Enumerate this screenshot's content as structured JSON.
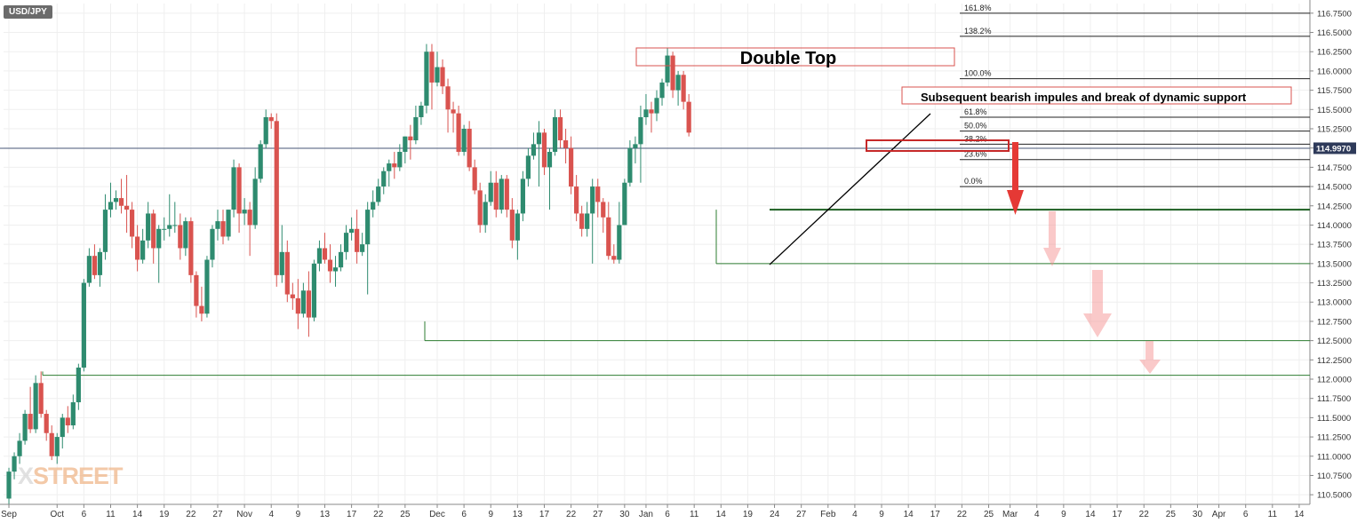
{
  "symbol": "USD/JPY",
  "watermark": {
    "prefix": "X",
    "rest": "STREET"
  },
  "chart_data": {
    "type": "candlestick",
    "title": "USD/JPY",
    "ylim": [
      110.375,
      116.875
    ],
    "xlim": [
      0,
      244
    ],
    "y_ticks": [
      110.5,
      110.75,
      111.0,
      111.25,
      111.5,
      111.75,
      112.0,
      112.25,
      112.5,
      112.75,
      113.0,
      113.25,
      113.5,
      113.75,
      114.0,
      114.25,
      114.5,
      114.75,
      115.0,
      115.25,
      115.5,
      115.75,
      116.0,
      116.25,
      116.5,
      116.75
    ],
    "y_tick_labels": [
      "110.5000",
      "110.7500",
      "111.0000",
      "111.2500",
      "111.5000",
      "111.7500",
      "112.0000",
      "112.2500",
      "112.5000",
      "112.7500",
      "113.0000",
      "113.2500",
      "113.5000",
      "113.7500",
      "114.0000",
      "114.2500",
      "114.5000",
      "114.7500",
      "115.0000",
      "115.2500",
      "115.5000",
      "115.7500",
      "116.0000",
      "116.2500",
      "116.5000",
      "116.7500"
    ],
    "x_ticks": [
      {
        "d": 1,
        "label": "Sep"
      },
      {
        "d": 10,
        "label": "Oct"
      },
      {
        "d": 15,
        "label": "6"
      },
      {
        "d": 20,
        "label": "11"
      },
      {
        "d": 25,
        "label": "14"
      },
      {
        "d": 30,
        "label": "19"
      },
      {
        "d": 35,
        "label": "22"
      },
      {
        "d": 40,
        "label": "27"
      },
      {
        "d": 45,
        "label": "Nov"
      },
      {
        "d": 50,
        "label": "4"
      },
      {
        "d": 55,
        "label": "9"
      },
      {
        "d": 60,
        "label": "13"
      },
      {
        "d": 65,
        "label": "17"
      },
      {
        "d": 70,
        "label": "22"
      },
      {
        "d": 75,
        "label": "25"
      },
      {
        "d": 81,
        "label": "Dec"
      },
      {
        "d": 86,
        "label": "6"
      },
      {
        "d": 91,
        "label": "9"
      },
      {
        "d": 96,
        "label": "13"
      },
      {
        "d": 101,
        "label": "17"
      },
      {
        "d": 106,
        "label": "22"
      },
      {
        "d": 111,
        "label": "27"
      },
      {
        "d": 116,
        "label": "30"
      },
      {
        "d": 120,
        "label": "Jan"
      },
      {
        "d": 124,
        "label": "6"
      },
      {
        "d": 129,
        "label": "11"
      },
      {
        "d": 134,
        "label": "14"
      },
      {
        "d": 139,
        "label": "19"
      },
      {
        "d": 144,
        "label": "24"
      },
      {
        "d": 149,
        "label": "27"
      },
      {
        "d": 154,
        "label": "Feb"
      },
      {
        "d": 159,
        "label": "4"
      },
      {
        "d": 164,
        "label": "9"
      },
      {
        "d": 169,
        "label": "14"
      },
      {
        "d": 174,
        "label": "17"
      },
      {
        "d": 179,
        "label": "22"
      },
      {
        "d": 184,
        "label": "25"
      },
      {
        "d": 188,
        "label": "Mar"
      },
      {
        "d": 193,
        "label": "4"
      },
      {
        "d": 198,
        "label": "9"
      },
      {
        "d": 203,
        "label": "14"
      },
      {
        "d": 208,
        "label": "17"
      },
      {
        "d": 213,
        "label": "22"
      },
      {
        "d": 218,
        "label": "25"
      },
      {
        "d": 223,
        "label": "30"
      },
      {
        "d": 227,
        "label": "Apr"
      },
      {
        "d": 232,
        "label": "6"
      },
      {
        "d": 237,
        "label": "11"
      },
      {
        "d": 242,
        "label": "14"
      }
    ],
    "candles": [
      {
        "d": 1,
        "o": 110.45,
        "h": 110.85,
        "l": 110.38,
        "c": 110.8
      },
      {
        "d": 2,
        "o": 110.8,
        "h": 111.05,
        "l": 110.7,
        "c": 111.0
      },
      {
        "d": 3,
        "o": 111.0,
        "h": 111.3,
        "l": 110.9,
        "c": 111.2
      },
      {
        "d": 4,
        "o": 111.2,
        "h": 111.6,
        "l": 111.15,
        "c": 111.55
      },
      {
        "d": 5,
        "o": 111.55,
        "h": 111.9,
        "l": 111.3,
        "c": 111.35
      },
      {
        "d": 6,
        "o": 111.35,
        "h": 112.05,
        "l": 111.3,
        "c": 111.95
      },
      {
        "d": 7,
        "o": 111.95,
        "h": 112.1,
        "l": 111.5,
        "c": 111.55
      },
      {
        "d": 8,
        "o": 111.55,
        "h": 111.6,
        "l": 111.2,
        "c": 111.3
      },
      {
        "d": 9,
        "o": 111.3,
        "h": 111.4,
        "l": 110.95,
        "c": 111.0
      },
      {
        "d": 10,
        "o": 111.0,
        "h": 111.3,
        "l": 110.9,
        "c": 111.25
      },
      {
        "d": 11,
        "o": 111.25,
        "h": 111.55,
        "l": 111.1,
        "c": 111.5
      },
      {
        "d": 12,
        "o": 111.5,
        "h": 111.65,
        "l": 111.3,
        "c": 111.4
      },
      {
        "d": 13,
        "o": 111.4,
        "h": 111.8,
        "l": 111.35,
        "c": 111.7
      },
      {
        "d": 14,
        "o": 111.7,
        "h": 112.2,
        "l": 111.6,
        "c": 112.15
      },
      {
        "d": 15,
        "o": 112.15,
        "h": 113.3,
        "l": 112.1,
        "c": 113.25
      },
      {
        "d": 16,
        "o": 113.25,
        "h": 113.7,
        "l": 113.2,
        "c": 113.6
      },
      {
        "d": 17,
        "o": 113.6,
        "h": 113.75,
        "l": 113.3,
        "c": 113.35
      },
      {
        "d": 18,
        "o": 113.35,
        "h": 113.7,
        "l": 113.2,
        "c": 113.65
      },
      {
        "d": 19,
        "o": 113.65,
        "h": 114.4,
        "l": 113.55,
        "c": 114.2
      },
      {
        "d": 20,
        "o": 114.2,
        "h": 114.55,
        "l": 114.1,
        "c": 114.3
      },
      {
        "d": 21,
        "o": 114.3,
        "h": 114.45,
        "l": 114.2,
        "c": 114.35
      },
      {
        "d": 22,
        "o": 114.35,
        "h": 114.6,
        "l": 114.15,
        "c": 114.25
      },
      {
        "d": 23,
        "o": 114.25,
        "h": 114.65,
        "l": 113.9,
        "c": 114.2
      },
      {
        "d": 24,
        "o": 114.2,
        "h": 114.3,
        "l": 113.7,
        "c": 113.85
      },
      {
        "d": 25,
        "o": 113.85,
        "h": 114.0,
        "l": 113.4,
        "c": 113.55
      },
      {
        "d": 26,
        "o": 113.55,
        "h": 113.95,
        "l": 113.5,
        "c": 113.8
      },
      {
        "d": 27,
        "o": 113.8,
        "h": 114.3,
        "l": 113.7,
        "c": 114.15
      },
      {
        "d": 28,
        "o": 114.15,
        "h": 114.2,
        "l": 113.5,
        "c": 113.7
      },
      {
        "d": 29,
        "o": 113.7,
        "h": 114.0,
        "l": 113.25,
        "c": 113.95
      },
      {
        "d": 30,
        "o": 113.95,
        "h": 114.1,
        "l": 113.8,
        "c": 113.95
      },
      {
        "d": 31,
        "o": 113.95,
        "h": 114.4,
        "l": 113.85,
        "c": 114.0
      },
      {
        "d": 32,
        "o": 114.0,
        "h": 114.3,
        "l": 113.9,
        "c": 114.0
      },
      {
        "d": 33,
        "o": 114.0,
        "h": 114.15,
        "l": 113.55,
        "c": 113.7
      },
      {
        "d": 34,
        "o": 113.7,
        "h": 114.1,
        "l": 113.6,
        "c": 114.05
      },
      {
        "d": 35,
        "o": 114.05,
        "h": 114.1,
        "l": 113.25,
        "c": 113.35
      },
      {
        "d": 36,
        "o": 113.35,
        "h": 113.4,
        "l": 112.8,
        "c": 112.95
      },
      {
        "d": 37,
        "o": 112.95,
        "h": 113.2,
        "l": 112.75,
        "c": 112.85
      },
      {
        "d": 38,
        "o": 112.85,
        "h": 113.6,
        "l": 112.8,
        "c": 113.55
      },
      {
        "d": 39,
        "o": 113.55,
        "h": 114.0,
        "l": 113.45,
        "c": 113.95
      },
      {
        "d": 40,
        "o": 113.95,
        "h": 114.2,
        "l": 113.8,
        "c": 114.05
      },
      {
        "d": 41,
        "o": 114.05,
        "h": 114.2,
        "l": 113.75,
        "c": 113.85
      },
      {
        "d": 42,
        "o": 113.85,
        "h": 114.2,
        "l": 113.8,
        "c": 114.2
      },
      {
        "d": 43,
        "o": 114.2,
        "h": 114.85,
        "l": 114.1,
        "c": 114.75
      },
      {
        "d": 44,
        "o": 114.75,
        "h": 114.8,
        "l": 113.9,
        "c": 114.15
      },
      {
        "d": 45,
        "o": 114.15,
        "h": 114.35,
        "l": 114.0,
        "c": 114.2
      },
      {
        "d": 46,
        "o": 114.2,
        "h": 114.3,
        "l": 113.6,
        "c": 114.0
      },
      {
        "d": 47,
        "o": 114.0,
        "h": 114.75,
        "l": 113.95,
        "c": 114.6
      },
      {
        "d": 48,
        "o": 114.6,
        "h": 115.1,
        "l": 114.55,
        "c": 115.05
      },
      {
        "d": 49,
        "o": 115.05,
        "h": 115.5,
        "l": 115.0,
        "c": 115.4
      },
      {
        "d": 50,
        "o": 115.4,
        "h": 115.45,
        "l": 115.25,
        "c": 115.35
      },
      {
        "d": 51,
        "o": 115.35,
        "h": 115.45,
        "l": 113.2,
        "c": 113.35
      },
      {
        "d": 52,
        "o": 113.35,
        "h": 114.0,
        "l": 113.25,
        "c": 113.65
      },
      {
        "d": 53,
        "o": 113.65,
        "h": 113.8,
        "l": 113.0,
        "c": 113.1
      },
      {
        "d": 54,
        "o": 113.1,
        "h": 113.25,
        "l": 112.9,
        "c": 113.05
      },
      {
        "d": 55,
        "o": 113.05,
        "h": 113.3,
        "l": 112.65,
        "c": 112.85
      },
      {
        "d": 56,
        "o": 112.85,
        "h": 113.25,
        "l": 112.8,
        "c": 113.15
      },
      {
        "d": 57,
        "o": 113.15,
        "h": 113.4,
        "l": 112.55,
        "c": 112.8
      },
      {
        "d": 58,
        "o": 112.8,
        "h": 113.55,
        "l": 112.75,
        "c": 113.5
      },
      {
        "d": 59,
        "o": 113.5,
        "h": 113.8,
        "l": 113.4,
        "c": 113.7
      },
      {
        "d": 60,
        "o": 113.7,
        "h": 113.9,
        "l": 113.5,
        "c": 113.55
      },
      {
        "d": 61,
        "o": 113.55,
        "h": 113.75,
        "l": 113.25,
        "c": 113.4
      },
      {
        "d": 62,
        "o": 113.4,
        "h": 113.6,
        "l": 113.2,
        "c": 113.45
      },
      {
        "d": 63,
        "o": 113.45,
        "h": 113.75,
        "l": 113.4,
        "c": 113.65
      },
      {
        "d": 64,
        "o": 113.65,
        "h": 114.0,
        "l": 113.55,
        "c": 113.9
      },
      {
        "d": 65,
        "o": 113.9,
        "h": 114.1,
        "l": 113.8,
        "c": 113.95
      },
      {
        "d": 66,
        "o": 113.95,
        "h": 114.2,
        "l": 113.5,
        "c": 113.65
      },
      {
        "d": 67,
        "o": 113.65,
        "h": 113.9,
        "l": 113.6,
        "c": 113.75
      },
      {
        "d": 68,
        "o": 113.75,
        "h": 114.3,
        "l": 113.1,
        "c": 114.2
      },
      {
        "d": 69,
        "o": 114.2,
        "h": 114.45,
        "l": 114.1,
        "c": 114.3
      },
      {
        "d": 70,
        "o": 114.3,
        "h": 114.6,
        "l": 114.25,
        "c": 114.5
      },
      {
        "d": 71,
        "o": 114.5,
        "h": 114.75,
        "l": 114.4,
        "c": 114.7
      },
      {
        "d": 72,
        "o": 114.7,
        "h": 114.85,
        "l": 114.5,
        "c": 114.8
      },
      {
        "d": 73,
        "o": 114.8,
        "h": 114.95,
        "l": 114.6,
        "c": 114.75
      },
      {
        "d": 74,
        "o": 114.75,
        "h": 115.05,
        "l": 114.7,
        "c": 114.95
      },
      {
        "d": 75,
        "o": 114.95,
        "h": 115.15,
        "l": 114.8,
        "c": 115.15
      },
      {
        "d": 76,
        "o": 115.15,
        "h": 115.3,
        "l": 114.85,
        "c": 115.1
      },
      {
        "d": 77,
        "o": 115.1,
        "h": 115.55,
        "l": 115.05,
        "c": 115.4
      },
      {
        "d": 78,
        "o": 115.4,
        "h": 115.6,
        "l": 115.3,
        "c": 115.55
      },
      {
        "d": 79,
        "o": 115.55,
        "h": 116.35,
        "l": 115.45,
        "c": 116.25
      },
      {
        "d": 80,
        "o": 116.25,
        "h": 116.35,
        "l": 115.5,
        "c": 115.85
      },
      {
        "d": 81,
        "o": 115.85,
        "h": 116.25,
        "l": 115.8,
        "c": 116.05
      },
      {
        "d": 82,
        "o": 116.05,
        "h": 116.15,
        "l": 115.7,
        "c": 115.8
      },
      {
        "d": 83,
        "o": 115.8,
        "h": 115.9,
        "l": 115.2,
        "c": 115.5
      },
      {
        "d": 84,
        "o": 115.5,
        "h": 115.6,
        "l": 115.2,
        "c": 115.45
      },
      {
        "d": 85,
        "o": 115.45,
        "h": 115.55,
        "l": 114.9,
        "c": 114.95
      },
      {
        "d": 86,
        "o": 114.95,
        "h": 115.3,
        "l": 114.9,
        "c": 115.25
      },
      {
        "d": 87,
        "o": 115.25,
        "h": 115.35,
        "l": 114.7,
        "c": 114.75
      },
      {
        "d": 88,
        "o": 114.75,
        "h": 114.85,
        "l": 114.4,
        "c": 114.45
      },
      {
        "d": 89,
        "o": 114.45,
        "h": 114.55,
        "l": 113.9,
        "c": 114.0
      },
      {
        "d": 90,
        "o": 114.0,
        "h": 114.4,
        "l": 113.9,
        "c": 114.3
      },
      {
        "d": 91,
        "o": 114.3,
        "h": 114.7,
        "l": 114.25,
        "c": 114.55
      },
      {
        "d": 92,
        "o": 114.55,
        "h": 114.7,
        "l": 114.1,
        "c": 114.2
      },
      {
        "d": 93,
        "o": 114.2,
        "h": 114.65,
        "l": 114.15,
        "c": 114.6
      },
      {
        "d": 94,
        "o": 114.6,
        "h": 114.65,
        "l": 114.1,
        "c": 114.2
      },
      {
        "d": 95,
        "o": 114.2,
        "h": 114.35,
        "l": 113.7,
        "c": 113.8
      },
      {
        "d": 96,
        "o": 113.8,
        "h": 114.2,
        "l": 113.55,
        "c": 114.15
      },
      {
        "d": 97,
        "o": 114.15,
        "h": 114.7,
        "l": 114.05,
        "c": 114.6
      },
      {
        "d": 98,
        "o": 114.6,
        "h": 115.0,
        "l": 114.5,
        "c": 114.9
      },
      {
        "d": 99,
        "o": 114.9,
        "h": 115.2,
        "l": 114.85,
        "c": 115.05
      },
      {
        "d": 100,
        "o": 115.05,
        "h": 115.35,
        "l": 114.5,
        "c": 115.2
      },
      {
        "d": 101,
        "o": 115.2,
        "h": 115.25,
        "l": 114.65,
        "c": 114.75
      },
      {
        "d": 102,
        "o": 114.75,
        "h": 115.0,
        "l": 114.2,
        "c": 114.95
      },
      {
        "d": 103,
        "o": 114.95,
        "h": 115.5,
        "l": 114.9,
        "c": 115.4
      },
      {
        "d": 104,
        "o": 115.4,
        "h": 115.5,
        "l": 115.0,
        "c": 115.1
      },
      {
        "d": 105,
        "o": 115.1,
        "h": 115.25,
        "l": 114.8,
        "c": 115.0
      },
      {
        "d": 106,
        "o": 115.0,
        "h": 115.15,
        "l": 114.4,
        "c": 114.5
      },
      {
        "d": 107,
        "o": 114.5,
        "h": 114.65,
        "l": 114.05,
        "c": 114.15
      },
      {
        "d": 108,
        "o": 114.15,
        "h": 114.25,
        "l": 113.85,
        "c": 113.95
      },
      {
        "d": 109,
        "o": 113.95,
        "h": 114.3,
        "l": 113.85,
        "c": 114.15
      },
      {
        "d": 110,
        "o": 114.15,
        "h": 114.6,
        "l": 113.5,
        "c": 114.5
      },
      {
        "d": 111,
        "o": 114.5,
        "h": 114.6,
        "l": 114.1,
        "c": 114.3
      },
      {
        "d": 112,
        "o": 114.3,
        "h": 114.35,
        "l": 113.9,
        "c": 114.1
      },
      {
        "d": 113,
        "o": 114.1,
        "h": 114.3,
        "l": 113.55,
        "c": 113.6
      },
      {
        "d": 114,
        "o": 113.6,
        "h": 113.75,
        "l": 113.5,
        "c": 113.55
      },
      {
        "d": 115,
        "o": 113.55,
        "h": 114.3,
        "l": 113.5,
        "c": 114.0
      },
      {
        "d": 116,
        "o": 114.0,
        "h": 114.6,
        "l": 114.0,
        "c": 114.55
      },
      {
        "d": 117,
        "o": 114.55,
        "h": 115.1,
        "l": 114.5,
        "c": 115.0
      },
      {
        "d": 118,
        "o": 115.0,
        "h": 115.15,
        "l": 114.8,
        "c": 115.05
      },
      {
        "d": 119,
        "o": 115.05,
        "h": 115.55,
        "l": 114.55,
        "c": 115.4
      },
      {
        "d": 120,
        "o": 115.4,
        "h": 115.7,
        "l": 115.3,
        "c": 115.5
      },
      {
        "d": 121,
        "o": 115.5,
        "h": 115.6,
        "l": 115.2,
        "c": 115.45
      },
      {
        "d": 122,
        "o": 115.45,
        "h": 115.75,
        "l": 115.35,
        "c": 115.65
      },
      {
        "d": 123,
        "o": 115.65,
        "h": 115.9,
        "l": 115.55,
        "c": 115.85
      },
      {
        "d": 124,
        "o": 115.85,
        "h": 116.3,
        "l": 115.8,
        "c": 116.2
      },
      {
        "d": 125,
        "o": 116.2,
        "h": 116.25,
        "l": 115.65,
        "c": 115.75
      },
      {
        "d": 126,
        "o": 115.75,
        "h": 116.0,
        "l": 115.55,
        "c": 115.95
      },
      {
        "d": 127,
        "o": 115.95,
        "h": 116.0,
        "l": 115.5,
        "c": 115.6
      },
      {
        "d": 128,
        "o": 115.6,
        "h": 115.7,
        "l": 115.15,
        "c": 115.2
      }
    ],
    "fib_levels": [
      {
        "label": "161.8%",
        "value": 116.75
      },
      {
        "label": "138.2%",
        "value": 116.45
      },
      {
        "label": "100.0%",
        "value": 115.9
      },
      {
        "label": "61.8%",
        "value": 115.4
      },
      {
        "label": "50.0%",
        "value": 115.22
      },
      {
        "label": "38.2%",
        "value": 115.05
      },
      {
        "label": "23.6%",
        "value": 114.85
      },
      {
        "label": "0.0%",
        "value": 114.5
      }
    ],
    "horizontal_levels": [
      114.2,
      113.5,
      112.5,
      112.05
    ],
    "current_price": 114.997,
    "current_price_label": "114.9970",
    "annotations": [
      {
        "text": "Double Top"
      },
      {
        "text": "Subsequent bearish impules and break of dynamic support"
      }
    ]
  }
}
